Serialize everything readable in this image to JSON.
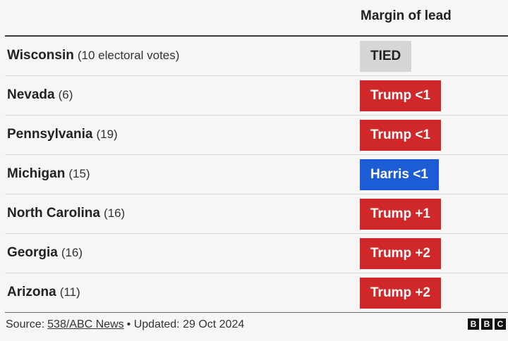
{
  "header": {
    "column_title": "Margin of lead"
  },
  "table": {
    "rows": [
      {
        "state": "Wisconsin",
        "votes": "(10 electoral votes)",
        "margin": "TIED",
        "color": "#d6d6d6",
        "text_color": "#222222"
      },
      {
        "state": "Nevada",
        "votes": "(6)",
        "margin": "Trump <1",
        "color": "#d0272a",
        "text_color": "#ffffff"
      },
      {
        "state": "Pennsylvania",
        "votes": "(19)",
        "margin": "Trump <1",
        "color": "#d0272a",
        "text_color": "#ffffff"
      },
      {
        "state": "Michigan",
        "votes": "(15)",
        "margin": "Harris <1",
        "color": "#1c5cd4",
        "text_color": "#ffffff"
      },
      {
        "state": "North Carolina",
        "votes": "(16)",
        "margin": "Trump +1",
        "color": "#d0272a",
        "text_color": "#ffffff"
      },
      {
        "state": "Georgia",
        "votes": "(16)",
        "margin": "Trump +2",
        "color": "#d0272a",
        "text_color": "#ffffff"
      },
      {
        "state": "Arizona",
        "votes": "(11)",
        "margin": "Trump +2",
        "color": "#d0272a",
        "text_color": "#ffffff"
      }
    ]
  },
  "footer": {
    "source_label": "Source:",
    "source_link": "538/ABC News",
    "updated": "• Updated: 29 Oct 2024",
    "logo": [
      "B",
      "B",
      "C"
    ]
  }
}
